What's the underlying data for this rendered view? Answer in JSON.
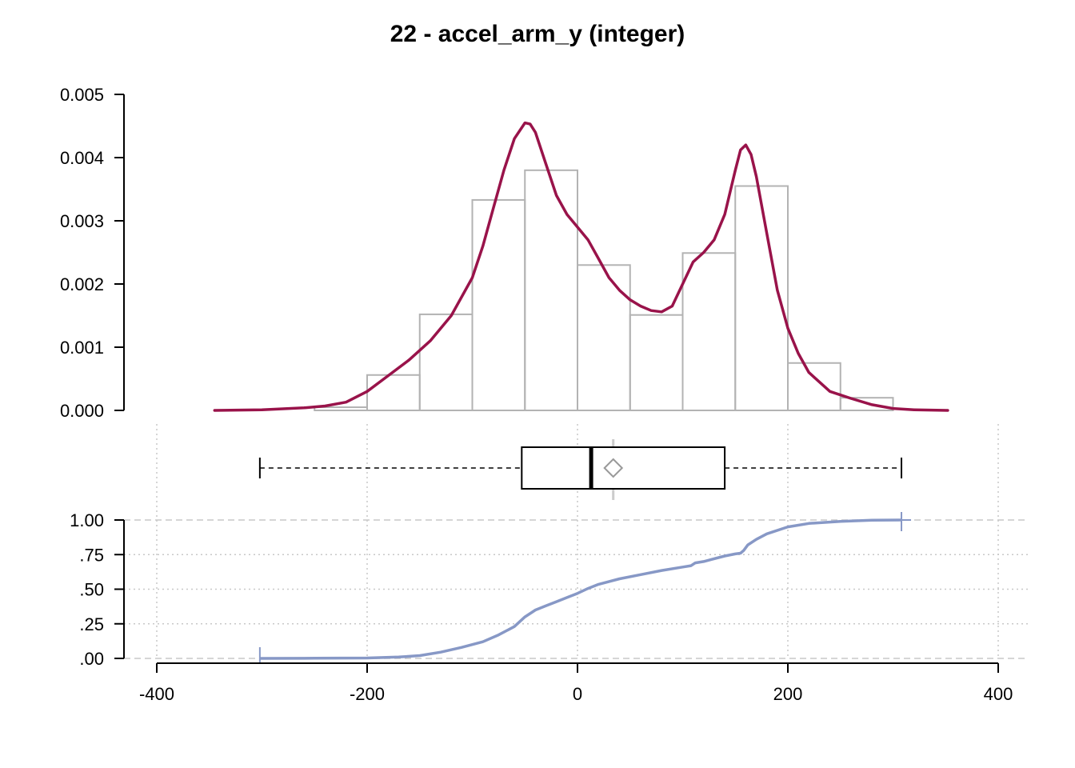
{
  "title": "22 - accel_arm_y (integer)",
  "colors": {
    "density": "#99134a",
    "histogram": "#b3b3b3",
    "ecdf": "#8798c6",
    "grid": "#c8c8c8",
    "axis": "#000000",
    "mean_marker": "#999999"
  },
  "chart_data": [
    {
      "type": "histogram",
      "panel": "density",
      "ylim": [
        0,
        0.005
      ],
      "yticks": [
        "0.000",
        "0.001",
        "0.002",
        "0.003",
        "0.004",
        "0.005"
      ],
      "bins": [
        {
          "x0": -250,
          "x1": -200,
          "value": 5e-05
        },
        {
          "x0": -200,
          "x1": -150,
          "value": 0.00056
        },
        {
          "x0": -150,
          "x1": -100,
          "value": 0.00152
        },
        {
          "x0": -100,
          "x1": -50,
          "value": 0.00333
        },
        {
          "x0": -50,
          "x1": 0,
          "value": 0.0038
        },
        {
          "x0": 0,
          "x1": 50,
          "value": 0.0023
        },
        {
          "x0": 50,
          "x1": 100,
          "value": 0.00151
        },
        {
          "x0": 100,
          "x1": 150,
          "value": 0.00249
        },
        {
          "x0": 150,
          "x1": 200,
          "value": 0.00355
        },
        {
          "x0": 200,
          "x1": 250,
          "value": 0.00075
        },
        {
          "x0": 250,
          "x1": 300,
          "value": 0.0002
        }
      ]
    },
    {
      "type": "line",
      "panel": "density",
      "x": [
        -345,
        -300,
        -260,
        -240,
        -220,
        -200,
        -180,
        -160,
        -140,
        -120,
        -100,
        -90,
        -80,
        -70,
        -60,
        -50,
        -45,
        -40,
        -30,
        -20,
        -10,
        0,
        10,
        20,
        30,
        40,
        50,
        60,
        70,
        80,
        90,
        100,
        110,
        120,
        130,
        140,
        150,
        155,
        160,
        165,
        170,
        180,
        190,
        200,
        210,
        220,
        240,
        260,
        280,
        300,
        320,
        352
      ],
      "y": [
        0,
        1e-05,
        4e-05,
        7e-05,
        0.00013,
        0.0003,
        0.00055,
        0.0008,
        0.0011,
        0.0015,
        0.0021,
        0.0026,
        0.0032,
        0.0038,
        0.0043,
        0.00455,
        0.00453,
        0.0044,
        0.0039,
        0.0034,
        0.0031,
        0.0029,
        0.0027,
        0.0024,
        0.0021,
        0.0019,
        0.00175,
        0.00165,
        0.00158,
        0.00156,
        0.00165,
        0.002,
        0.00235,
        0.0025,
        0.0027,
        0.0031,
        0.0038,
        0.00412,
        0.0042,
        0.00405,
        0.0037,
        0.0028,
        0.0019,
        0.0013,
        0.0009,
        0.0006,
        0.0003,
        0.00019,
        9e-05,
        3e-05,
        1e-05,
        0
      ]
    },
    {
      "type": "boxplot",
      "panel": "box",
      "whisker_low": -302,
      "q1": -53,
      "median": 13,
      "q3": 140,
      "whisker_high": 308,
      "mean": 34
    },
    {
      "type": "line",
      "panel": "ecdf",
      "ylim": [
        0,
        1
      ],
      "yticks": [
        ".00",
        ".25",
        ".50",
        ".75",
        "1.00"
      ],
      "yticklabel_top": "1.00",
      "x": [
        -302,
        -250,
        -200,
        -170,
        -150,
        -130,
        -110,
        -90,
        -75,
        -60,
        -50,
        -40,
        -30,
        -20,
        -10,
        0,
        10,
        20,
        40,
        60,
        80,
        100,
        108,
        112,
        120,
        140,
        150,
        155,
        158,
        162,
        170,
        180,
        200,
        220,
        250,
        280,
        308
      ],
      "y": [
        0,
        0.001,
        0.003,
        0.01,
        0.02,
        0.045,
        0.08,
        0.12,
        0.17,
        0.23,
        0.3,
        0.35,
        0.38,
        0.41,
        0.44,
        0.47,
        0.505,
        0.535,
        0.575,
        0.605,
        0.635,
        0.66,
        0.67,
        0.69,
        0.7,
        0.74,
        0.755,
        0.76,
        0.78,
        0.82,
        0.86,
        0.9,
        0.95,
        0.975,
        0.99,
        0.998,
        1.0
      ]
    },
    {
      "type": "axis",
      "panel": "x",
      "xlim": [
        -400,
        400
      ],
      "xticks": [
        "-400",
        "-200",
        "0",
        "200",
        "400"
      ]
    }
  ]
}
